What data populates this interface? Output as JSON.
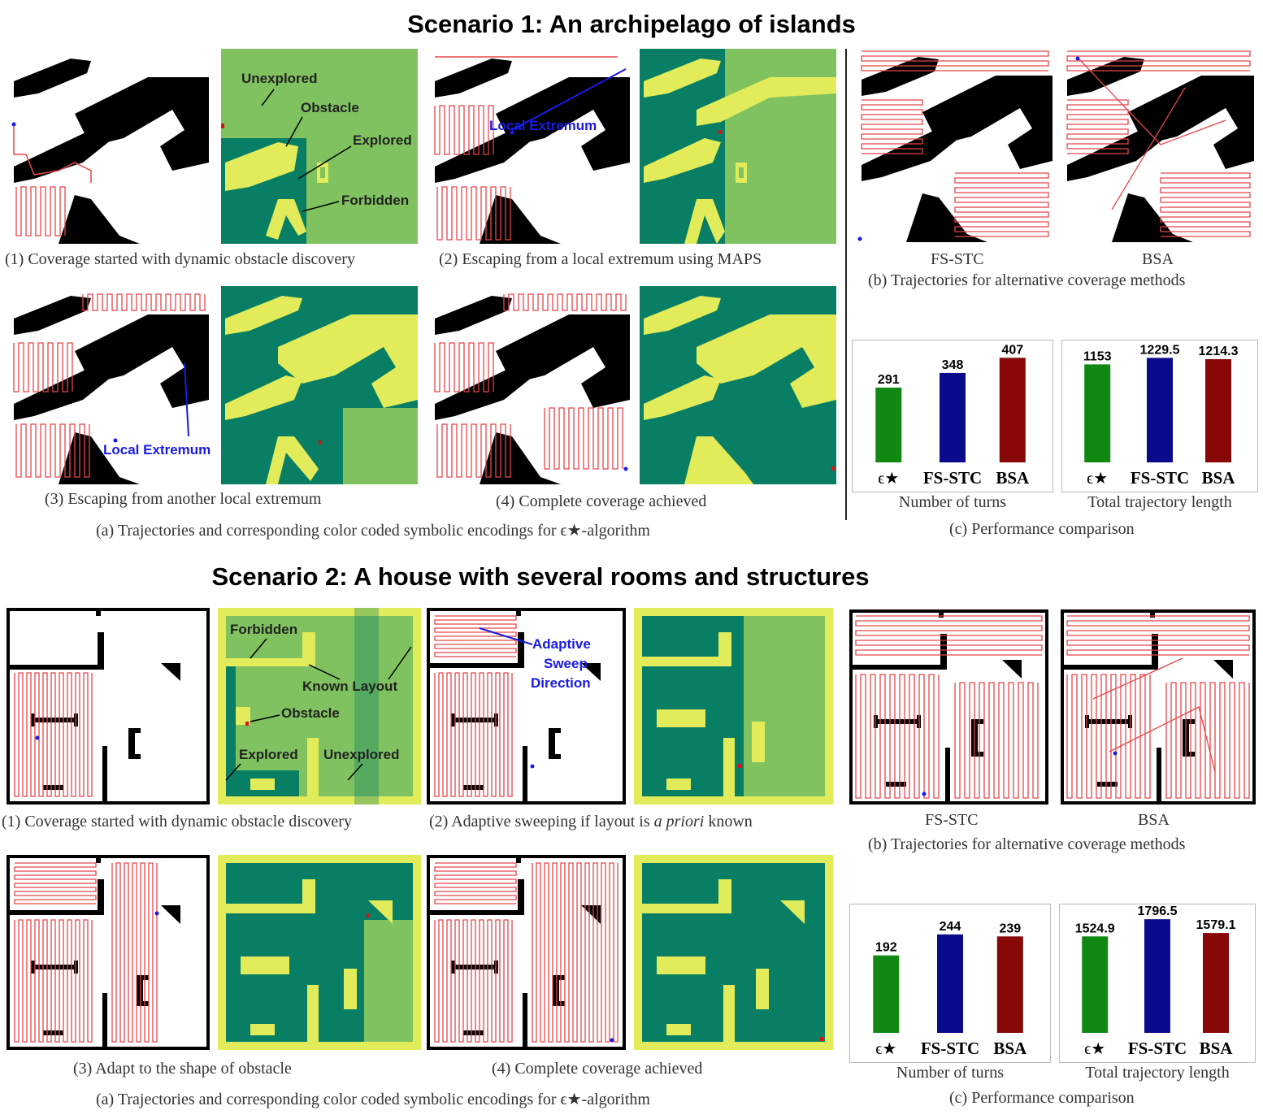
{
  "scenario1": {
    "title": "Scenario 1: An archipelago of islands",
    "captions": {
      "p1": "(1) Coverage started with dynamic obstacle discovery",
      "p2": "(2) Escaping from a local extremum using MAPS",
      "p3": "(3) Escaping from another local extremum",
      "p4": "(4) Complete coverage achieved",
      "a": "(a) Trajectories and corresponding color coded symbolic encodings for ϵ★-algorithm",
      "fsstc": "FS-STC",
      "bsa": "BSA",
      "b": "(b) Trajectories for alternative coverage methods",
      "c": "(c) Performance comparison"
    },
    "annotations": {
      "unexplored": "Unexplored",
      "obstacle": "Obstacle",
      "explored": "Explored",
      "forbidden": "Forbidden",
      "local_extremum": "Local Extremum",
      "local_extremum2": "Local Extremum"
    }
  },
  "scenario2": {
    "title": "Scenario 2: A house with several rooms and structures",
    "captions": {
      "p1": "(1) Coverage started with dynamic obstacle discovery",
      "p2a": "(2) Adaptive sweeping if layout is ",
      "p2b": "a priori",
      "p2c": " known",
      "p3": "(3) Adapt to the shape of obstacle",
      "p4": "(4) Complete coverage achieved",
      "a": "(a) Trajectories and corresponding color coded symbolic encodings for ϵ★-algorithm",
      "fsstc": "FS-STC",
      "bsa": "BSA",
      "b": "(b) Trajectories for alternative coverage methods",
      "c": "(c) Performance comparison"
    },
    "annotations": {
      "forbidden": "Forbidden",
      "known_layout": "Known Layout",
      "obstacle": "Obstacle",
      "explored": "Explored",
      "unexplored": "Unexplored",
      "adaptive1": "Adaptive",
      "adaptive2": "Sweep",
      "adaptive3": "Direction"
    }
  },
  "colors": {
    "path": "#e8454a",
    "obstacle": "#000000",
    "unexplored": "#7fc25f",
    "explored": "#087f64",
    "forbidden": "#e2ec5a",
    "annotation_blue": "#1a1ae6",
    "bar_green": "#118811",
    "bar_blue": "#0a0a8c",
    "bar_red": "#880808"
  },
  "chart_data": [
    {
      "type": "bar",
      "scenario": "Scenario 1",
      "categories": [
        "ϵ★",
        "FS-STC",
        "BSA"
      ],
      "values": [
        291,
        348,
        407
      ],
      "labels": [
        "291",
        "348",
        "407"
      ],
      "xlabel": "Number of turns",
      "ylim": [
        0,
        430
      ]
    },
    {
      "type": "bar",
      "scenario": "Scenario 1",
      "categories": [
        "ϵ★",
        "FS-STC",
        "BSA"
      ],
      "values": [
        1153,
        1229.5,
        1214.3
      ],
      "labels": [
        "1153",
        "1229.5",
        "1214.3"
      ],
      "xlabel": "Total trajectory length",
      "ylim": [
        0,
        1300
      ]
    },
    {
      "type": "bar",
      "scenario": "Scenario 2",
      "categories": [
        "ϵ★",
        "FS-STC",
        "BSA"
      ],
      "values": [
        192,
        244,
        239
      ],
      "labels": [
        "192",
        "244",
        "239"
      ],
      "xlabel": "Number of turns",
      "ylim": [
        0,
        290
      ]
    },
    {
      "type": "bar",
      "scenario": "Scenario 2",
      "categories": [
        "ϵ★",
        "FS-STC",
        "BSA"
      ],
      "values": [
        1524.9,
        1796.5,
        1579.1
      ],
      "labels": [
        "1524.9",
        "1796.5",
        "1579.1"
      ],
      "xlabel": "Total trajectory length",
      "ylim": [
        0,
        1850
      ]
    }
  ]
}
